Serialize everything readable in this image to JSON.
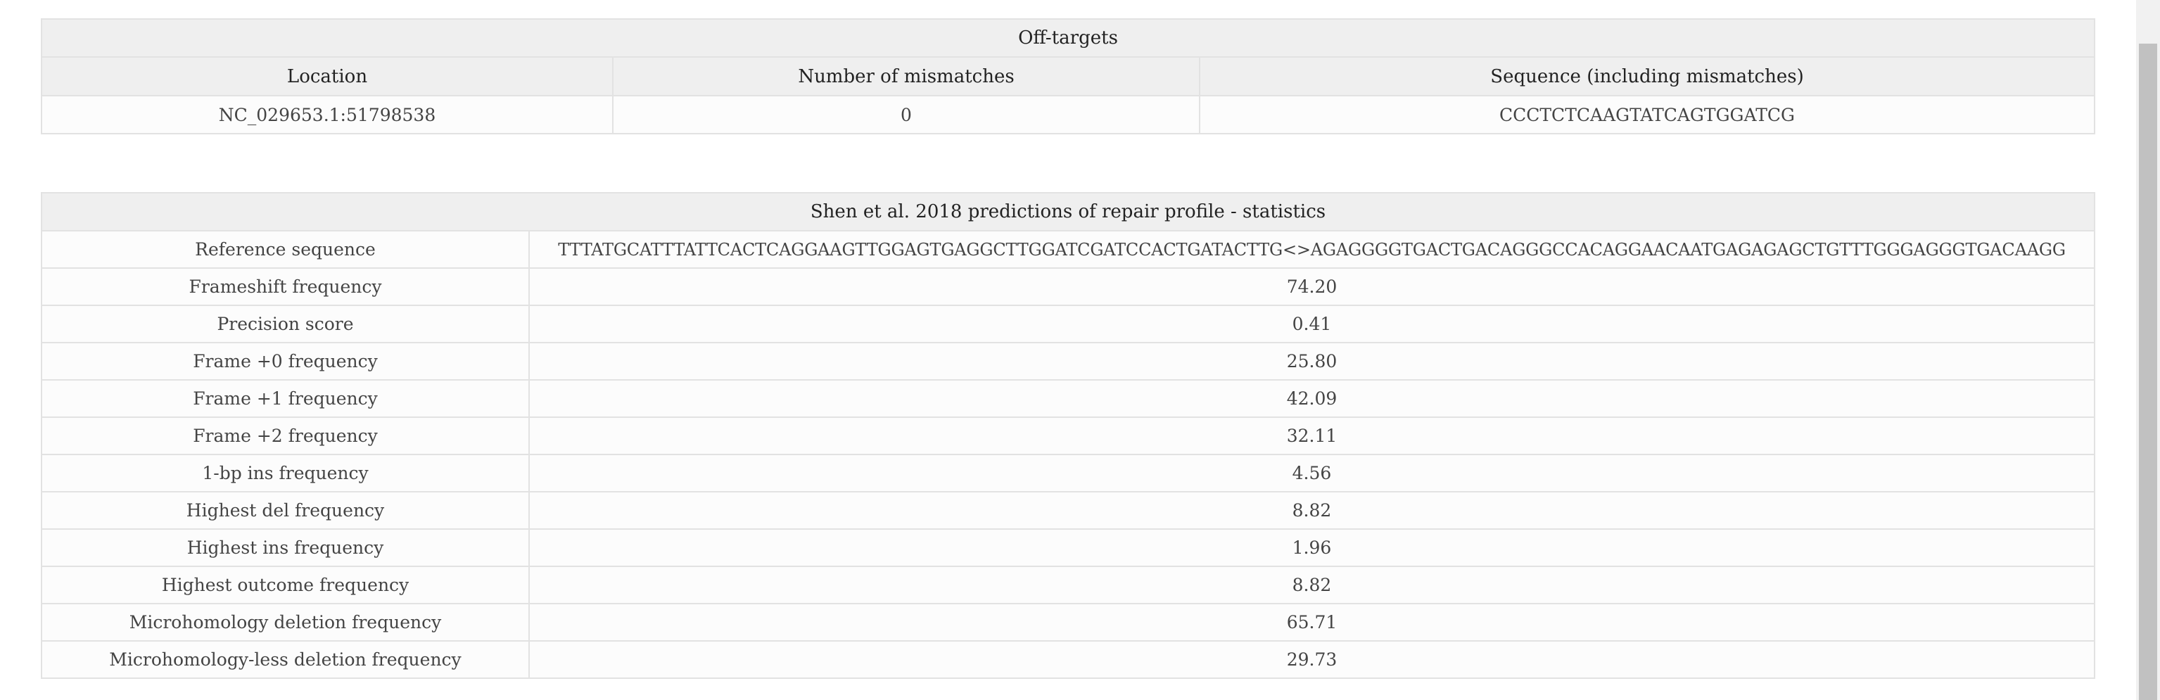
{
  "off_targets": {
    "title": "Off-targets",
    "headers": [
      "Location",
      "Number of mismatches",
      "Sequence (including mismatches)"
    ],
    "rows": [
      [
        "NC_029653.1:51798538",
        "0",
        "CCCTCTCAAGTATCAGTGGATCG"
      ]
    ]
  },
  "stats": {
    "title": "Shen et al. 2018 predictions of repair profile - statistics",
    "rows": [
      [
        "Reference sequence",
        "TTTATGCATTTATTCACTCAGGAAGTTGGAGTGAGGCTTGGATCGATCCACTGATACTTG<>AGAGGGGTGACTGACAGGGCCACAGGAACAATGAGAGAGCTGTTTGGGAGGGTGACAAGG"
      ],
      [
        "Frameshift frequency",
        "74.20"
      ],
      [
        "Precision score",
        "0.41"
      ],
      [
        "Frame +0 frequency",
        "25.80"
      ],
      [
        "Frame +1 frequency",
        "42.09"
      ],
      [
        "Frame +2 frequency",
        "32.11"
      ],
      [
        "1-bp ins frequency",
        "4.56"
      ],
      [
        "Highest del frequency",
        "8.82"
      ],
      [
        "Highest ins frequency",
        "1.96"
      ],
      [
        "Highest outcome frequency",
        "8.82"
      ],
      [
        "Microhomology deletion frequency",
        "65.71"
      ],
      [
        "Microhomology-less deletion frequency",
        "29.73"
      ]
    ]
  }
}
